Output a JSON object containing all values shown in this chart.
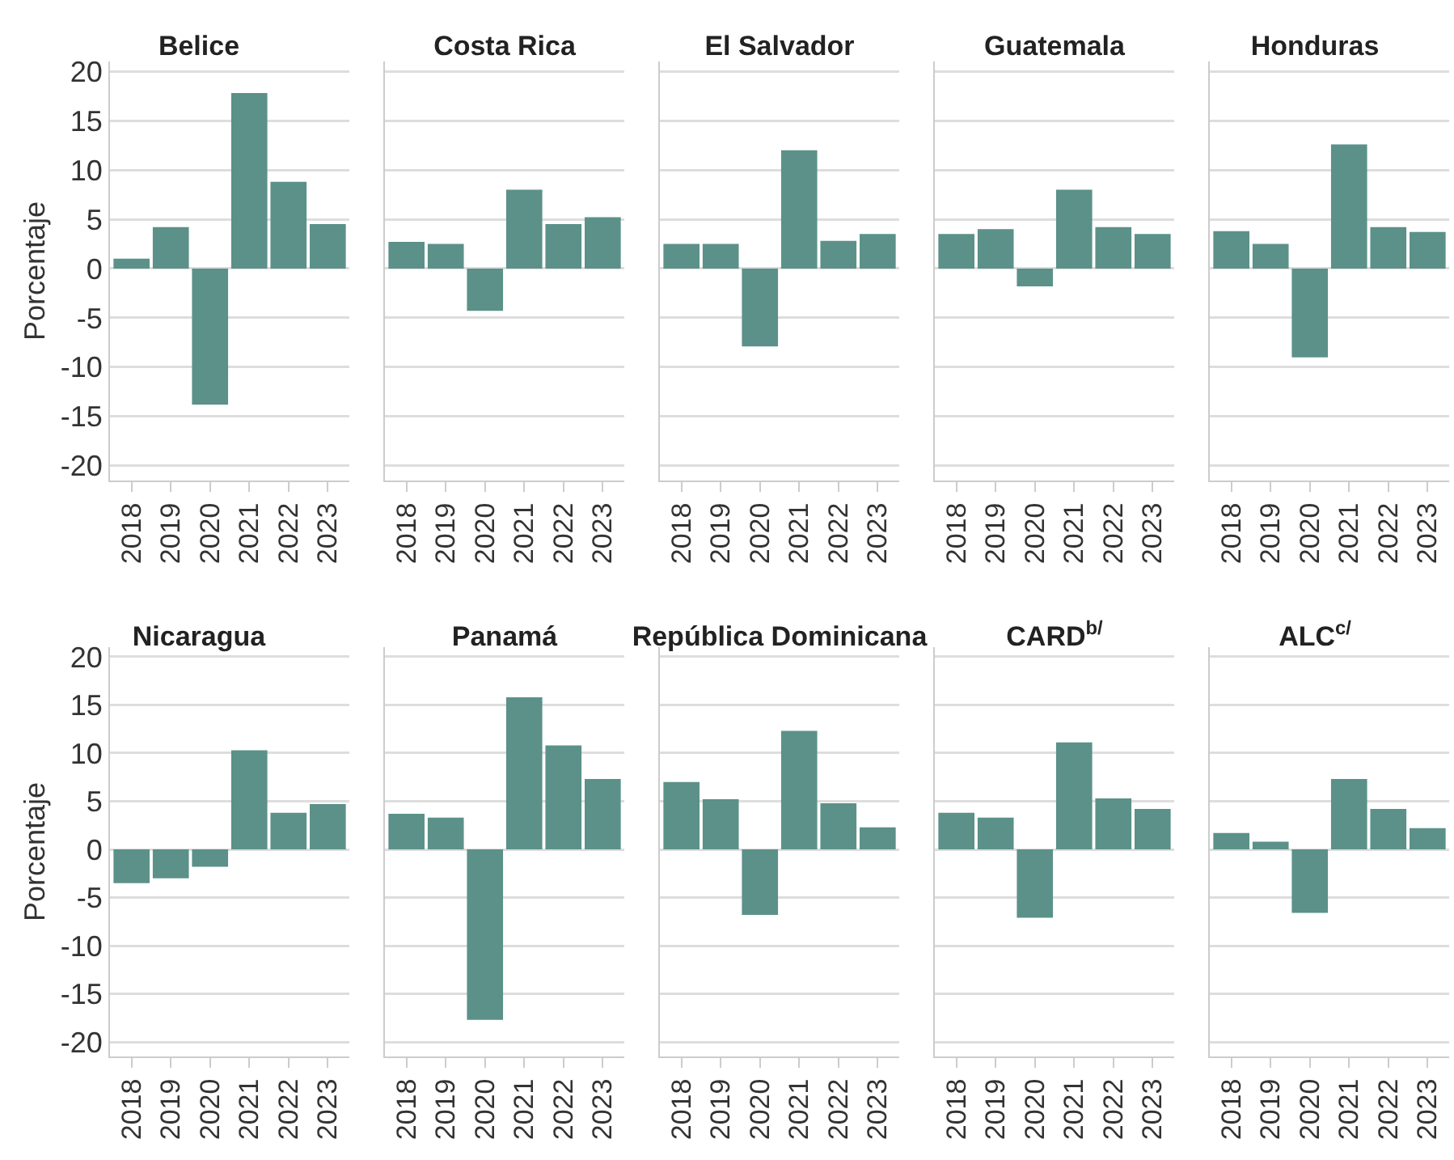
{
  "chart_data": [
    {
      "type": "bar",
      "title": "Belice",
      "ylabel": "Porcentaje",
      "categories": [
        "2018",
        "2019",
        "2020",
        "2021",
        "2022",
        "2023"
      ],
      "values": [
        1.0,
        4.2,
        -13.8,
        17.8,
        8.8,
        4.5
      ],
      "color": "#5b9189",
      "ylim": [
        -21.5,
        21
      ],
      "yticks": [
        -20,
        -15,
        -10,
        -5,
        0,
        5,
        10,
        15,
        20
      ],
      "grid": "y"
    },
    {
      "type": "bar",
      "title": "Costa Rica",
      "categories": [
        "2018",
        "2019",
        "2020",
        "2021",
        "2022",
        "2023"
      ],
      "values": [
        2.7,
        2.5,
        -4.3,
        8.0,
        4.5,
        5.2
      ],
      "color": "#5b9189",
      "ylim": [
        -21.5,
        21
      ],
      "yticks": [
        -20,
        -15,
        -10,
        -5,
        0,
        5,
        10,
        15,
        20
      ],
      "grid": "y",
      "tick_labels": "x"
    },
    {
      "type": "bar",
      "title": "El Salvador",
      "categories": [
        "2018",
        "2019",
        "2020",
        "2021",
        "2022",
        "2023"
      ],
      "values": [
        2.5,
        2.5,
        -7.9,
        12.0,
        2.8,
        3.5
      ],
      "color": "#5b9189",
      "ylim": [
        -21.5,
        21
      ],
      "yticks": [
        -20,
        -15,
        -10,
        -5,
        0,
        5,
        10,
        15,
        20
      ],
      "grid": "y",
      "tick_labels": "x"
    },
    {
      "type": "bar",
      "title": "Guatemala",
      "categories": [
        "2018",
        "2019",
        "2020",
        "2021",
        "2022",
        "2023"
      ],
      "values": [
        3.5,
        4.0,
        -1.8,
        8.0,
        4.2,
        3.5
      ],
      "color": "#5b9189",
      "ylim": [
        -21.5,
        21
      ],
      "yticks": [
        -20,
        -15,
        -10,
        -5,
        0,
        5,
        10,
        15,
        20
      ],
      "grid": "y",
      "tick_labels": "x"
    },
    {
      "type": "bar",
      "title": "Honduras",
      "categories": [
        "2018",
        "2019",
        "2020",
        "2021",
        "2022",
        "2023"
      ],
      "values": [
        3.8,
        2.5,
        -9.0,
        12.6,
        4.2,
        3.7
      ],
      "color": "#5b9189",
      "ylim": [
        -21.5,
        21
      ],
      "yticks": [
        -20,
        -15,
        -10,
        -5,
        0,
        5,
        10,
        15,
        20
      ],
      "grid": "y",
      "tick_labels": "x"
    },
    {
      "type": "bar",
      "title": "Nicaragua",
      "ylabel": "Porcentaje",
      "categories": [
        "2018",
        "2019",
        "2020",
        "2021",
        "2022",
        "2023"
      ],
      "values": [
        -3.5,
        -3.0,
        -1.8,
        10.3,
        3.8,
        4.7
      ],
      "color": "#5b9189",
      "ylim": [
        -21.5,
        21
      ],
      "yticks": [
        -20,
        -15,
        -10,
        -5,
        0,
        5,
        10,
        15,
        20
      ],
      "grid": "y"
    },
    {
      "type": "bar",
      "title": "Panamá",
      "categories": [
        "2018",
        "2019",
        "2020",
        "2021",
        "2022",
        "2023"
      ],
      "values": [
        3.7,
        3.3,
        -17.7,
        15.8,
        10.8,
        7.3
      ],
      "color": "#5b9189",
      "ylim": [
        -21.5,
        21
      ],
      "yticks": [
        -20,
        -15,
        -10,
        -5,
        0,
        5,
        10,
        15,
        20
      ],
      "grid": "y",
      "tick_labels": "x"
    },
    {
      "type": "bar",
      "title": "República Dominicana",
      "categories": [
        "2018",
        "2019",
        "2020",
        "2021",
        "2022",
        "2023"
      ],
      "values": [
        7.0,
        5.2,
        -6.8,
        12.3,
        4.8,
        2.3
      ],
      "color": "#5b9189",
      "ylim": [
        -21.5,
        21
      ],
      "yticks": [
        -20,
        -15,
        -10,
        -5,
        0,
        5,
        10,
        15,
        20
      ],
      "grid": "y",
      "tick_labels": "x"
    },
    {
      "type": "bar",
      "title": "CARD$^{b/}$",
      "categories": [
        "2018",
        "2019",
        "2020",
        "2021",
        "2022",
        "2023"
      ],
      "values": [
        3.8,
        3.3,
        -7.1,
        11.1,
        5.3,
        4.2
      ],
      "color": "#5b9189",
      "ylim": [
        -21.5,
        21
      ],
      "yticks": [
        -20,
        -15,
        -10,
        -5,
        0,
        5,
        10,
        15,
        20
      ],
      "grid": "y",
      "tick_labels": "x"
    },
    {
      "type": "bar",
      "title": "ALC$^{c/}$",
      "categories": [
        "2018",
        "2019",
        "2020",
        "2021",
        "2022",
        "2023"
      ],
      "values": [
        1.7,
        0.8,
        -6.6,
        7.3,
        4.2,
        2.2
      ],
      "color": "#5b9189",
      "ylim": [
        -21.5,
        21
      ],
      "yticks": [
        -20,
        -15,
        -10,
        -5,
        0,
        5,
        10,
        15,
        20
      ],
      "grid": "y",
      "tick_labels": "x"
    }
  ]
}
